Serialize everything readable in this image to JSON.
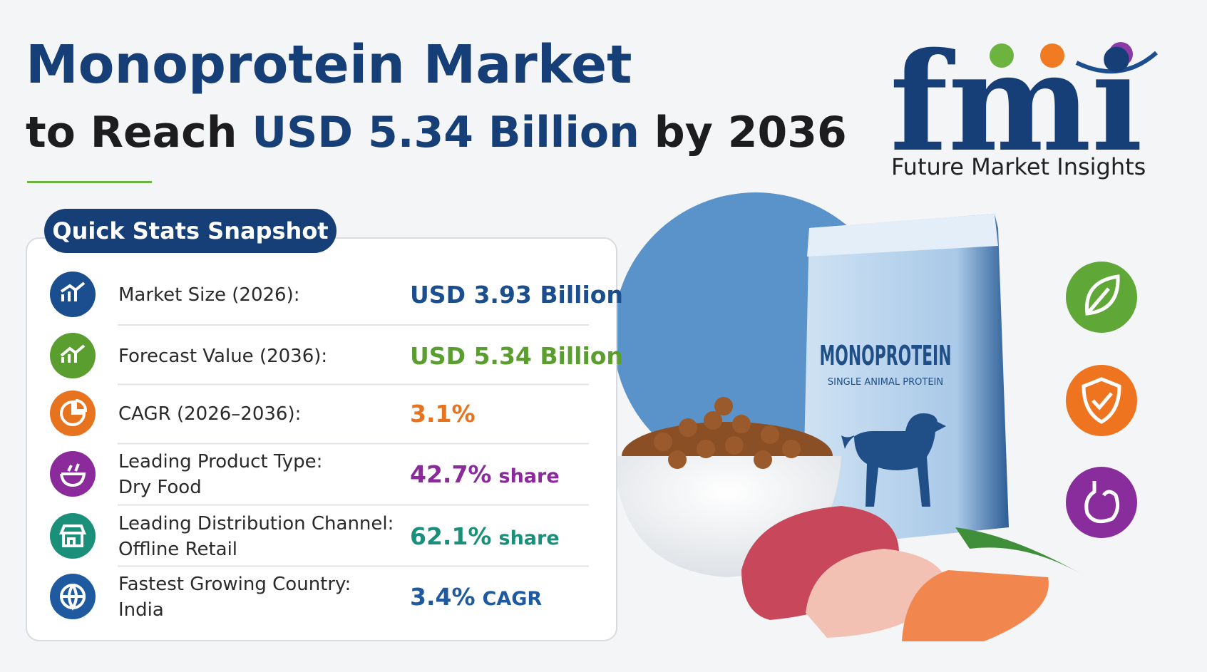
{
  "header": {
    "title_line1": "Monoprotein Market",
    "title_pre": "to Reach",
    "title_highlight": "USD 5.34 Billion",
    "title_post": "by 2036"
  },
  "logo": {
    "mark": "fmi",
    "name": "Future Market Insights"
  },
  "snapshot": {
    "title": "Quick Stats Snapshot",
    "rows": [
      {
        "label": [
          "Market Size (2026):"
        ],
        "value": "USD 3.93 Billion"
      },
      {
        "label": [
          "Forecast Value (2036):"
        ],
        "value": "USD 5.34 Billion"
      },
      {
        "label": [
          "CAGR (2026–2036):"
        ],
        "value": "3.1%"
      },
      {
        "label": [
          "Leading Product Type:",
          "Dry Food"
        ],
        "value": "42.7%",
        "suffix": "share"
      },
      {
        "label": [
          "Leading Distribution Channel:",
          "Offline Retail"
        ],
        "value": "62.1%",
        "suffix": "share"
      },
      {
        "label": [
          "Fastest Growing Country:",
          "India"
        ],
        "value": "3.4%",
        "suffix": "CAGR"
      }
    ]
  },
  "package": {
    "brand": "MONOPROTEIN",
    "tagline": "SINGLE ANIMAL PROTEIN"
  }
}
